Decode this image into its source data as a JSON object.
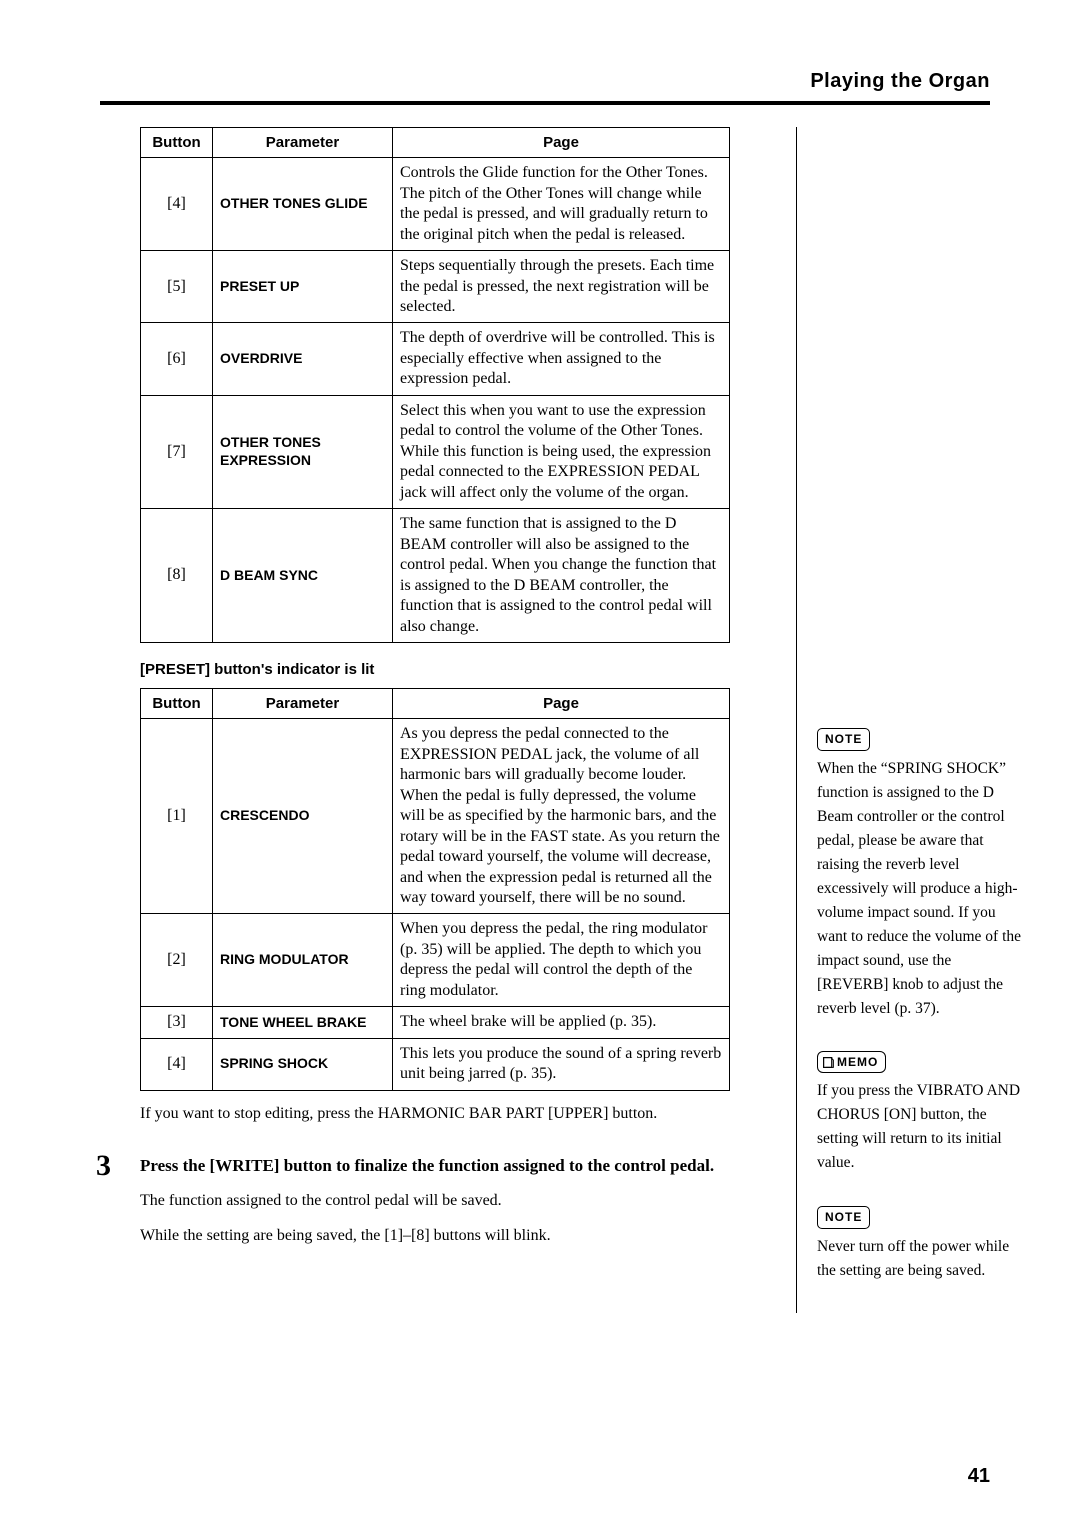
{
  "header": {
    "title": "Playing the Organ"
  },
  "table1": {
    "headers": [
      "Button",
      "Parameter",
      "Page"
    ],
    "rows": [
      {
        "btn": "[4]",
        "param": "OTHER TONES GLIDE",
        "page": "Controls the Glide function for the Other Tones. The pitch of the Other Tones will change while the pedal is pressed, and will gradually return to the original pitch when the pedal is released."
      },
      {
        "btn": "[5]",
        "param": "PRESET UP",
        "page": "Steps sequentially through the presets. Each time the pedal is pressed, the next registration will be selected."
      },
      {
        "btn": "[6]",
        "param": "OVERDRIVE",
        "page": "The depth of overdrive will be controlled. This is especially effective when assigned to the expression pedal."
      },
      {
        "btn": "[7]",
        "param": "OTHER TONES EXPRESSION",
        "page": "Select this when you want to use the expression pedal to control the volume of the Other Tones.\nWhile this function is being used, the expression pedal connected to the EXPRESSION PEDAL jack will affect only the volume of the organ."
      },
      {
        "btn": "[8]",
        "param": "D BEAM SYNC",
        "page": "The same function that is assigned to the D BEAM controller will also be assigned to the control pedal. When you change the function that is assigned to the D BEAM controller, the function that is assigned to the control pedal will also change."
      }
    ]
  },
  "sub_heading": "[PRESET] button's indicator is lit",
  "table2": {
    "headers": [
      "Button",
      "Parameter",
      "Page"
    ],
    "rows": [
      {
        "btn": "[1]",
        "param": "CRESCENDO",
        "page": "As you depress the pedal connected to the EXPRESSION PEDAL jack, the volume of all harmonic bars will gradually become louder. When the pedal is fully depressed, the volume will be as specified by the harmonic bars, and the rotary will be in the FAST state. As you return the pedal toward yourself, the volume will decrease, and when the expression pedal is returned all the way toward yourself, there will be no sound."
      },
      {
        "btn": "[2]",
        "param": "RING MODULATOR",
        "page": "When you depress the pedal, the ring modulator (p. 35) will be applied. The depth to which you depress the pedal will control the depth of the ring modulator."
      },
      {
        "btn": "[3]",
        "param": "TONE WHEEL BRAKE",
        "page": "The wheel brake will be applied (p. 35)."
      },
      {
        "btn": "[4]",
        "param": "SPRING SHOCK",
        "page": "This lets you produce the sound of a spring reverb unit being jarred (p. 35)."
      }
    ]
  },
  "after_table_text": "If you want to stop editing, press the HARMONIC BAR PART [UPPER] button.",
  "step": {
    "num": "3",
    "title": "Press the [WRITE] button to finalize the function assigned to the control pedal.",
    "sub1": "The function assigned to the control pedal will be saved.",
    "sub2": "While the setting are being saved, the [1]–[8] buttons will blink."
  },
  "side": {
    "note1_label": "NOTE",
    "note1_text": "When the “SPRING SHOCK” function is assigned to the D Beam controller or the control pedal, please be aware that raising the reverb level excessively will produce a high-volume impact sound. If you want to reduce the volume of the impact sound, use the [REVERB] knob to adjust the reverb level (p. 37).",
    "memo_label": "MEMO",
    "memo_text": "If you press the VIBRATO AND CHORUS [ON] button, the setting will return to its initial value.",
    "note2_label": "NOTE",
    "note2_text": "Never turn off the power while the setting are being saved."
  },
  "page_number": "41"
}
